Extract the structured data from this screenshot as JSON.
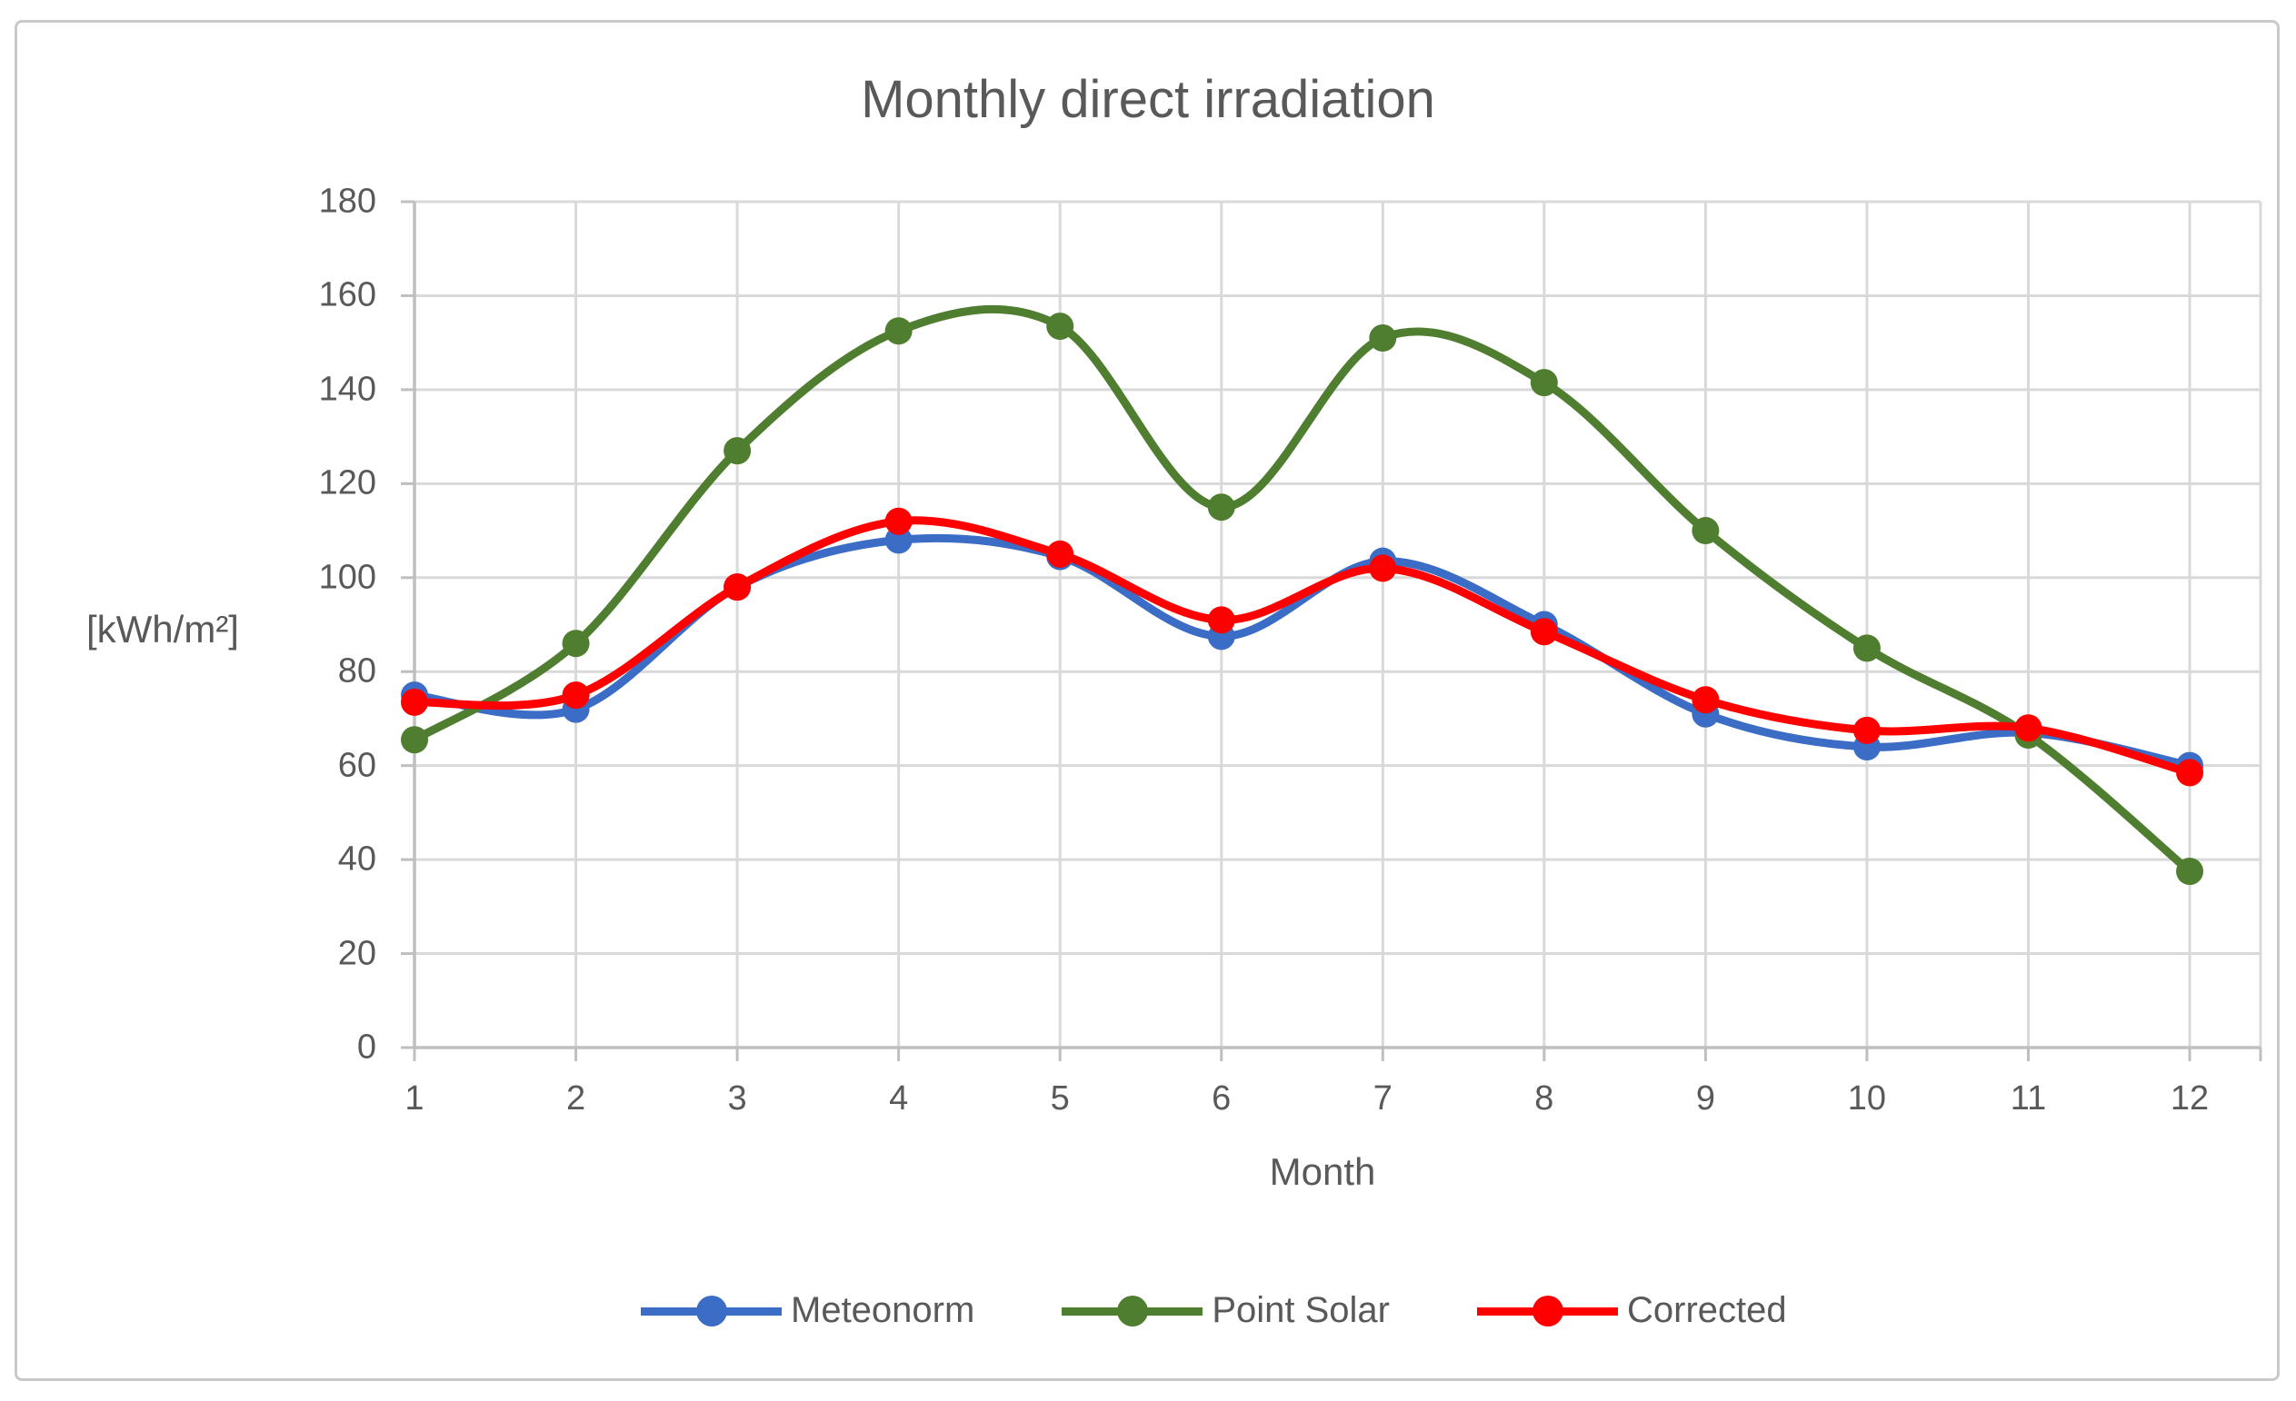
{
  "figure": {
    "background": "#ffffff",
    "border_color": "#c9c9c9"
  },
  "chart_data": {
    "type": "line",
    "title": "Monthly direct irradiation",
    "xlabel": "Month",
    "ylabel": "[kWh/m²]",
    "categories": [
      1,
      2,
      3,
      4,
      5,
      6,
      7,
      8,
      9,
      10,
      11,
      12
    ],
    "series": [
      {
        "name": "Meteonorm",
        "color": "#3b6cc6",
        "values": [
          75,
          72,
          98,
          108,
          104.5,
          87.5,
          103.5,
          90,
          71,
          64,
          67,
          60
        ]
      },
      {
        "name": "Point Solar",
        "color": "#507e30",
        "values": [
          65.5,
          86,
          127,
          152.5,
          153.5,
          115,
          151,
          141.5,
          110,
          85,
          66.5,
          37.5
        ]
      },
      {
        "name": "Corrected",
        "color": "#ff0000",
        "values": [
          73.5,
          75,
          98,
          112,
          105,
          91,
          102,
          88.5,
          74,
          67.5,
          68,
          58.5
        ]
      }
    ],
    "ylim": [
      0,
      180
    ],
    "ytick_step": 20,
    "grid": true,
    "smooth": true,
    "legend_position": "bottom",
    "marker": "circle",
    "gridline_color": "#d9d9d9",
    "axis_color": "#bfbfbf",
    "text_color": "#595959"
  }
}
